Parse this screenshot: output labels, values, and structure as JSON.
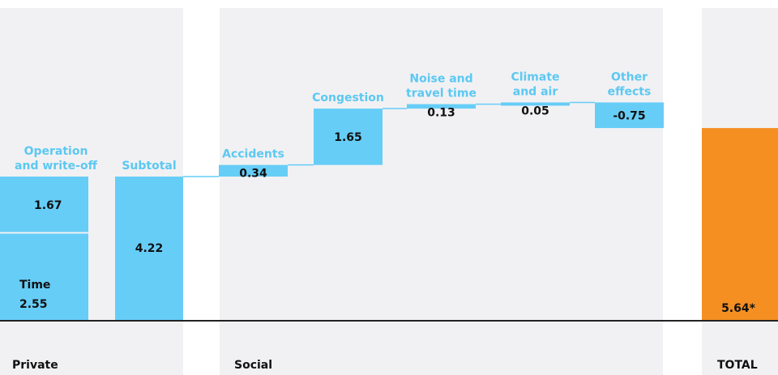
{
  "chart_data": {
    "type": "bar",
    "subtype": "waterfall",
    "colors": {
      "bar": "#66cdf7",
      "total": "#f58f21",
      "panel": "#f1f1f3",
      "label": "#5cc8f2",
      "text": "#111111",
      "baseline": "#222222"
    },
    "sections": [
      {
        "id": "private",
        "title": "Private"
      },
      {
        "id": "social",
        "title": "Social"
      },
      {
        "id": "total",
        "title": "TOTAL"
      }
    ],
    "items": [
      {
        "section": "private",
        "label": [
          "Operation",
          "and write-off"
        ],
        "value": 1.67,
        "value_label": "1.67",
        "kind": "stack-top"
      },
      {
        "section": "private",
        "label": [
          "Time"
        ],
        "value": 2.55,
        "value_label": "2.55",
        "kind": "stack-bottom"
      },
      {
        "section": "private",
        "label": [
          "Subtotal"
        ],
        "value": 4.22,
        "value_label": "4.22",
        "kind": "subtotal"
      },
      {
        "section": "social",
        "label": [
          "Accidents"
        ],
        "value": 0.34,
        "value_label": "0.34",
        "kind": "delta"
      },
      {
        "section": "social",
        "label": [
          "Congestion"
        ],
        "value": 1.65,
        "value_label": "1.65",
        "kind": "delta"
      },
      {
        "section": "social",
        "label": [
          "Noise and",
          "travel time"
        ],
        "value": 0.13,
        "value_label": "0.13",
        "kind": "delta"
      },
      {
        "section": "social",
        "label": [
          "Climate",
          "and air"
        ],
        "value": 0.05,
        "value_label": "0.05",
        "kind": "delta"
      },
      {
        "section": "social",
        "label": [
          "Other",
          "effects"
        ],
        "value": -0.75,
        "value_label": "-0.75",
        "kind": "delta"
      },
      {
        "section": "total",
        "label": [],
        "value": 5.64,
        "value_label": "5.64*",
        "kind": "total"
      }
    ],
    "ylim": [
      0,
      7.2
    ]
  }
}
